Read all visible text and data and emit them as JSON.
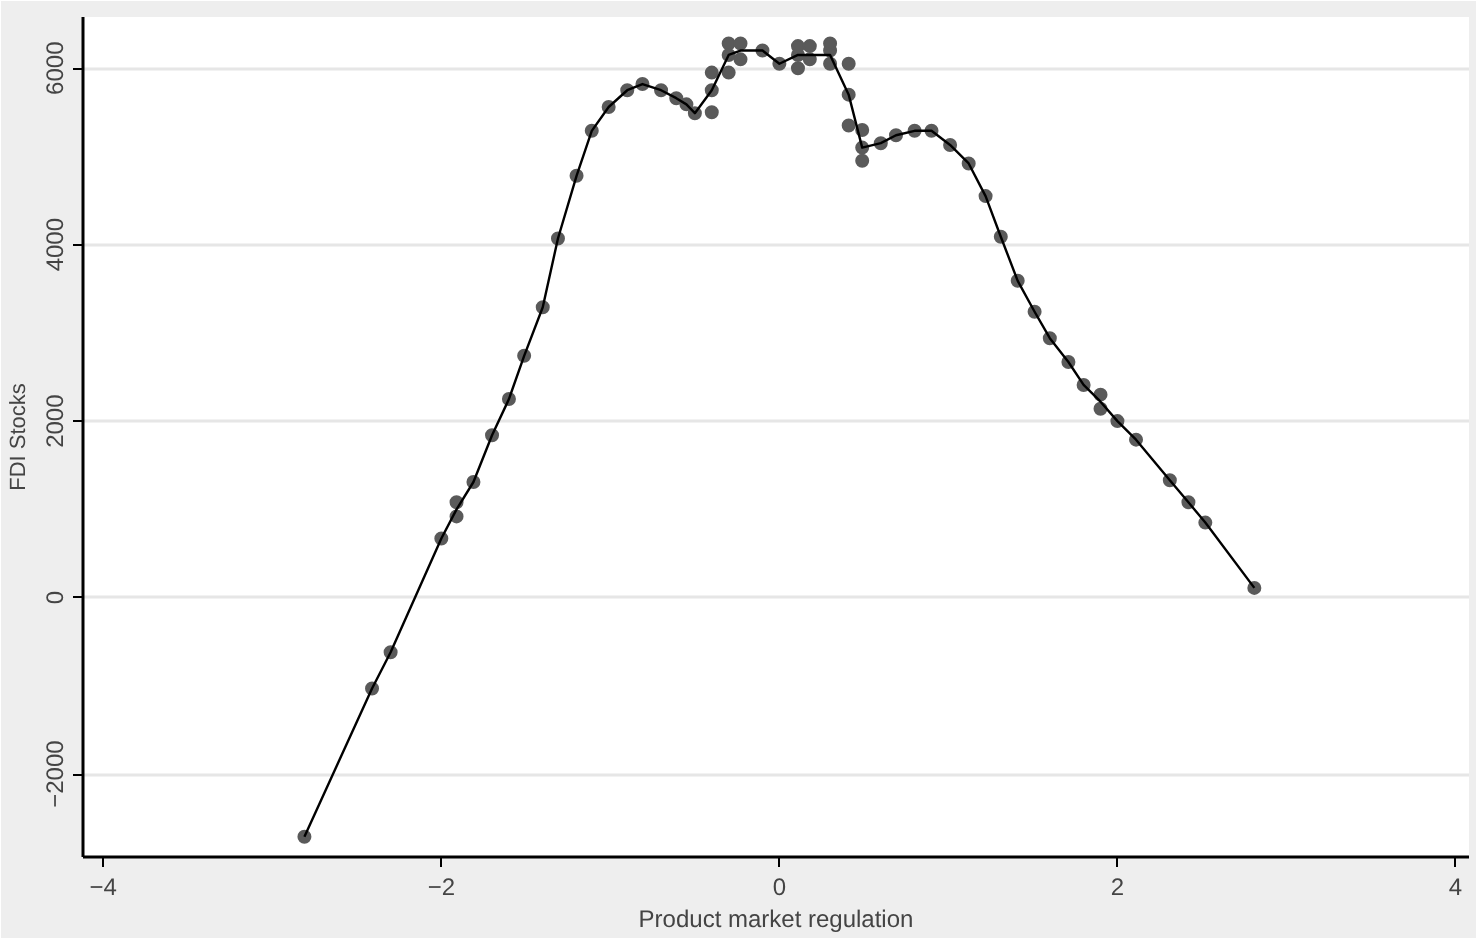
{
  "chart_data": {
    "type": "scatter",
    "xlabel": "Product market regulation",
    "ylabel": "FDI Stocks",
    "xlim": [
      -4.12,
      4.08
    ],
    "ylim": [
      -2940,
      6580
    ],
    "xticks": [
      -4,
      -2,
      0,
      2,
      4
    ],
    "yticks": [
      -2000,
      0,
      2000,
      4000,
      6000
    ],
    "grid": "y",
    "series": [
      {
        "type": "scatter",
        "marker": "circle",
        "color": "#5a5a5a",
        "x": [
          -2.81,
          -2.41,
          -2.3,
          -2.0,
          -1.91,
          -1.91,
          -1.81,
          -1.7,
          -1.6,
          -1.51,
          -1.4,
          -1.31,
          -1.2,
          -1.11,
          -1.01,
          -0.9,
          -0.81,
          -0.7,
          -0.61,
          -0.55,
          -0.5,
          -0.4,
          -0.4,
          -0.4,
          -0.3,
          -0.3,
          -0.3,
          -0.23,
          -0.23,
          -0.1,
          0.0,
          0.11,
          0.11,
          0.11,
          0.18,
          0.18,
          0.3,
          0.3,
          0.3,
          0.41,
          0.41,
          0.41,
          0.49,
          0.49,
          0.49,
          0.6,
          0.69,
          0.8,
          0.9,
          1.01,
          1.12,
          1.22,
          1.31,
          1.41,
          1.51,
          1.6,
          1.71,
          1.8,
          1.9,
          1.9,
          2.0,
          2.11,
          2.31,
          2.42,
          2.52,
          2.81
        ],
        "values": [
          -2710,
          -1030,
          -620,
          670,
          920,
          1080,
          1310,
          1840,
          2250,
          2740,
          3290,
          4070,
          4780,
          5290,
          5560,
          5750,
          5820,
          5750,
          5660,
          5590,
          5490,
          5500,
          5750,
          5950,
          5950,
          6150,
          6280,
          6100,
          6280,
          6200,
          6050,
          6000,
          6150,
          6250,
          6100,
          6250,
          6050,
          6200,
          6280,
          6050,
          5700,
          5350,
          5300,
          5100,
          4950,
          5150,
          5240,
          5290,
          5290,
          5130,
          4920,
          4550,
          4090,
          3590,
          3240,
          2940,
          2670,
          2410,
          2300,
          2140,
          2000,
          1790,
          1330,
          1080,
          850,
          110
        ]
      },
      {
        "type": "line",
        "color": "#000000",
        "line_style": "solid",
        "x": [
          -2.81,
          -2.41,
          -2.3,
          -2.0,
          -1.91,
          -1.81,
          -1.7,
          -1.6,
          -1.51,
          -1.4,
          -1.31,
          -1.2,
          -1.11,
          -1.01,
          -0.9,
          -0.81,
          -0.7,
          -0.61,
          -0.55,
          -0.5,
          -0.4,
          -0.3,
          -0.23,
          -0.1,
          0.0,
          0.11,
          0.18,
          0.3,
          0.41,
          0.49,
          0.6,
          0.69,
          0.8,
          0.9,
          1.01,
          1.12,
          1.22,
          1.31,
          1.41,
          1.51,
          1.6,
          1.71,
          1.8,
          1.9,
          2.0,
          2.11,
          2.31,
          2.42,
          2.52,
          2.81
        ],
        "values": [
          -2710,
          -1030,
          -620,
          670,
          1000,
          1310,
          1840,
          2250,
          2740,
          3290,
          4070,
          4780,
          5290,
          5560,
          5750,
          5820,
          5750,
          5660,
          5590,
          5490,
          5750,
          6150,
          6200,
          6200,
          6050,
          6150,
          6150,
          6150,
          5700,
          5100,
          5150,
          5240,
          5290,
          5290,
          5130,
          4920,
          4550,
          4090,
          3590,
          3240,
          2940,
          2670,
          2410,
          2220,
          2000,
          1790,
          1330,
          1080,
          850,
          110
        ]
      }
    ]
  }
}
